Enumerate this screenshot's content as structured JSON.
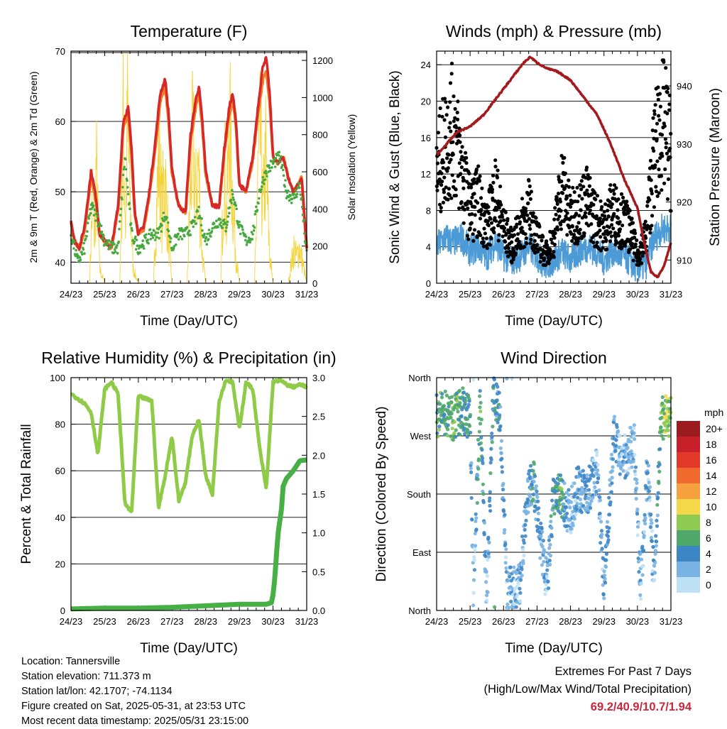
{
  "chart_data": [
    {
      "type": "line",
      "title": "Temperature (F)",
      "xlabel": "Time (Day/UTC)",
      "ylabel": "2m & 9m T (Red, Orange) & 2m Td (Green)",
      "ylabel_right": "Solar Insolation (Yellow)",
      "x_ticks": [
        "24/23",
        "25/23",
        "26/23",
        "27/23",
        "28/23",
        "29/23",
        "30/23",
        "31/23"
      ],
      "xlim": [
        0,
        7
      ],
      "ylim": [
        37,
        70
      ],
      "y_ticks": [
        40,
        50,
        60,
        70
      ],
      "ylim_right": [
        0,
        1250
      ],
      "y_ticks_right": [
        0,
        200,
        400,
        600,
        800,
        1000,
        1200
      ],
      "grid": "horizontal",
      "series": [
        {
          "name": "2m T",
          "axis": "left",
          "color": "#d62828",
          "x": [
            0,
            0.1,
            0.25,
            0.4,
            0.6,
            0.75,
            0.85,
            1,
            1.2,
            1.4,
            1.55,
            1.7,
            1.8,
            1.9,
            2,
            2.15,
            2.3,
            2.5,
            2.65,
            2.8,
            2.9,
            3,
            3.2,
            3.4,
            3.55,
            3.7,
            3.8,
            3.9,
            4,
            4.2,
            4.4,
            4.55,
            4.7,
            4.8,
            4.9,
            5,
            5.2,
            5.4,
            5.55,
            5.7,
            5.8,
            5.9,
            6,
            6.15,
            6.3,
            6.45,
            6.6,
            6.75,
            6.85,
            7
          ],
          "y": [
            46,
            43,
            42,
            45,
            53,
            49,
            44,
            43,
            42,
            48,
            60,
            62,
            56,
            47,
            44,
            45,
            49,
            57,
            64,
            66,
            61,
            53,
            48,
            47,
            58,
            63,
            65,
            60,
            53,
            48,
            48,
            56,
            62,
            64,
            60,
            51,
            50,
            55,
            62,
            68,
            69,
            64,
            55,
            54,
            55,
            52,
            50,
            51,
            52,
            42
          ]
        },
        {
          "name": "9m T",
          "axis": "left",
          "color": "#f07e26",
          "x": [
            0,
            0.1,
            0.25,
            0.4,
            0.6,
            0.75,
            0.85,
            1,
            1.2,
            1.4,
            1.55,
            1.7,
            1.8,
            1.9,
            2,
            2.15,
            2.3,
            2.5,
            2.65,
            2.8,
            2.9,
            3,
            3.2,
            3.4,
            3.55,
            3.7,
            3.8,
            3.9,
            4,
            4.2,
            4.4,
            4.55,
            4.7,
            4.8,
            4.9,
            5,
            5.2,
            5.4,
            5.55,
            5.7,
            5.8,
            5.9,
            6,
            6.15,
            6.3,
            6.45,
            6.6,
            6.75,
            6.85,
            7
          ],
          "y": [
            45.5,
            43,
            42,
            44.5,
            52,
            48.5,
            44,
            43,
            42,
            47.5,
            59,
            61,
            55,
            46.5,
            44,
            44.5,
            48.5,
            56,
            63,
            65,
            60,
            52.5,
            48,
            47,
            57,
            62,
            64,
            59.5,
            52.5,
            48,
            48,
            55.5,
            61,
            63,
            59.5,
            51,
            50,
            54.5,
            61,
            66,
            67,
            63,
            55,
            54,
            55,
            52,
            50,
            51,
            52,
            42
          ]
        },
        {
          "name": "2m Td",
          "axis": "left",
          "color": "#46a83e",
          "x": [
            0,
            0.2,
            0.4,
            0.6,
            0.8,
            1,
            1.2,
            1.4,
            1.6,
            1.8,
            2,
            2.2,
            2.4,
            2.6,
            2.8,
            3,
            3.2,
            3.4,
            3.6,
            3.8,
            4,
            4.2,
            4.4,
            4.6,
            4.8,
            5,
            5.2,
            5.4,
            5.6,
            5.8,
            6,
            6.2,
            6.4,
            6.6,
            6.8,
            7
          ],
          "y": [
            44,
            40,
            42,
            48,
            46,
            43,
            42,
            42,
            55,
            44,
            42,
            43,
            44,
            44,
            47,
            42,
            44,
            44,
            45,
            47,
            43,
            45,
            46,
            45,
            50,
            45,
            43,
            44,
            50,
            53,
            54,
            55,
            50,
            49,
            51,
            41
          ]
        },
        {
          "name": "Solar Insolation",
          "axis": "right",
          "color": "#f5d43b",
          "x": [
            0,
            0.55,
            0.65,
            0.7,
            0.75,
            0.85,
            1,
            1.45,
            1.55,
            1.62,
            1.68,
            1.75,
            1.85,
            2,
            2.45,
            2.55,
            2.62,
            2.7,
            2.78,
            2.9,
            3,
            3.45,
            3.55,
            3.62,
            3.7,
            3.78,
            3.9,
            4,
            4.45,
            4.55,
            4.62,
            4.7,
            4.78,
            4.9,
            5,
            5.45,
            5.55,
            5.62,
            5.7,
            5.78,
            5.9,
            6,
            6.45,
            6.55,
            6.62,
            6.7,
            6.78,
            6.9,
            7
          ],
          "y": [
            0,
            0,
            700,
            300,
            850,
            100,
            0,
            0,
            1150,
            400,
            1200,
            600,
            100,
            0,
            0,
            600,
            950,
            500,
            800,
            300,
            0,
            0,
            700,
            1000,
            600,
            850,
            200,
            0,
            0,
            900,
            400,
            1200,
            700,
            200,
            0,
            0,
            750,
            1000,
            500,
            900,
            200,
            0,
            0,
            150,
            250,
            180,
            260,
            120,
            0
          ]
        }
      ]
    },
    {
      "type": "scatter",
      "title": "Winds (mph) & Pressure (mb)",
      "xlabel": "Time (Day/UTC)",
      "ylabel": "Sonic Wind & Gust (Blue, Black)",
      "ylabel_right": "Station Pressure (Maroon)",
      "x_ticks": [
        "24/23",
        "25/23",
        "26/23",
        "27/23",
        "28/23",
        "29/23",
        "30/23",
        "31/23"
      ],
      "xlim": [
        0,
        7
      ],
      "ylim": [
        0,
        25.5
      ],
      "y_ticks": [
        0,
        4,
        8,
        12,
        16,
        20,
        24
      ],
      "ylim_right": [
        906,
        946
      ],
      "y_ticks_right": [
        910,
        920,
        930,
        940
      ],
      "grid": "horizontal",
      "series": [
        {
          "name": "Sonic Wind",
          "axis": "left",
          "style": "line",
          "color": "#4d9bd6",
          "x": [
            0,
            0.25,
            0.5,
            0.75,
            1,
            1.25,
            1.5,
            1.75,
            2,
            2.25,
            2.5,
            2.75,
            3,
            3.25,
            3.5,
            3.75,
            4,
            4.25,
            4.5,
            4.75,
            5,
            5.25,
            5.5,
            5.75,
            6,
            6.25,
            6.5,
            6.75,
            7
          ],
          "y": [
            4,
            5,
            4.5,
            5,
            3.5,
            4,
            3,
            4.5,
            3,
            2.5,
            3,
            4,
            3,
            2,
            2.5,
            3.5,
            2.5,
            3.5,
            4,
            3.5,
            2.5,
            3.5,
            3,
            2.5,
            1.5,
            2,
            5,
            6,
            6
          ]
        },
        {
          "name": "Gust",
          "axis": "left",
          "style": "points",
          "color": "#000000",
          "x": [
            0,
            0.25,
            0.5,
            0.75,
            1,
            1.25,
            1.5,
            1.75,
            2,
            2.25,
            2.5,
            2.75,
            3,
            3.25,
            3.5,
            3.75,
            4,
            4.25,
            4.5,
            4.75,
            5,
            5.25,
            5.5,
            5.75,
            6,
            6.25,
            6.5,
            6.75,
            7
          ],
          "y": [
            12,
            15,
            17,
            12,
            8,
            9,
            6,
            10,
            6,
            4,
            6,
            8,
            5,
            3,
            5,
            11,
            7,
            8,
            9,
            7,
            6,
            8,
            7,
            6,
            3,
            5,
            14,
            18,
            14
          ]
        },
        {
          "name": "Station Pressure",
          "axis": "right",
          "style": "line",
          "color": "#a5191d",
          "x": [
            0,
            0.3,
            0.6,
            1,
            1.4,
            1.8,
            2.2,
            2.6,
            2.8,
            3,
            3.3,
            3.6,
            4,
            4.4,
            4.8,
            5.2,
            5.6,
            6,
            6.2,
            6.4,
            6.6,
            6.8,
            7
          ],
          "y": [
            928,
            930,
            932,
            933,
            935,
            938,
            941,
            944,
            945,
            944,
            943,
            942.5,
            941,
            938,
            935,
            930,
            924,
            919,
            913,
            908,
            907,
            909,
            913
          ]
        }
      ]
    },
    {
      "type": "line",
      "title": "Relative Humidity (%) & Precipitation (in)",
      "xlabel": "Time (Day/UTC)",
      "ylabel": "Percent & Total Rainfall",
      "x_ticks": [
        "24/23",
        "25/23",
        "26/23",
        "27/23",
        "28/23",
        "29/23",
        "30/23",
        "31/23"
      ],
      "xlim": [
        0,
        7
      ],
      "ylim": [
        0,
        100
      ],
      "y_ticks": [
        0,
        20,
        40,
        60,
        80,
        100
      ],
      "ylim_right": [
        0,
        3.0
      ],
      "y_ticks_right": [
        "0.0",
        "0.5",
        "1.0",
        "1.5",
        "2.0",
        "2.5",
        "3.0"
      ],
      "grid": "horizontal",
      "series": [
        {
          "name": "Relative Humidity",
          "axis": "left",
          "color": "#8fcb47",
          "x": [
            0,
            0.2,
            0.4,
            0.6,
            0.8,
            1,
            1.2,
            1.4,
            1.6,
            1.8,
            2,
            2.2,
            2.4,
            2.6,
            2.8,
            3,
            3.2,
            3.4,
            3.6,
            3.8,
            4,
            4.2,
            4.4,
            4.6,
            4.8,
            5,
            5.2,
            5.4,
            5.6,
            5.8,
            6,
            6.2,
            6.4,
            6.6,
            6.8,
            7
          ],
          "y": [
            93,
            91,
            89,
            85,
            67,
            95,
            98,
            93,
            46,
            42,
            92,
            91,
            90,
            44,
            58,
            75,
            47,
            55,
            75,
            82,
            58,
            50,
            90,
            99,
            98,
            78,
            98,
            95,
            70,
            52,
            98,
            99,
            97,
            96,
            97,
            96
          ]
        },
        {
          "name": "Total Precipitation",
          "axis": "right",
          "color": "#46b046",
          "x": [
            0,
            1,
            2,
            3,
            4,
            5,
            5.8,
            5.95,
            6,
            6.05,
            6.1,
            6.15,
            6.25,
            6.3,
            6.4,
            6.5,
            6.6,
            6.8,
            7
          ],
          "y": [
            0.02,
            0.03,
            0.03,
            0.04,
            0.06,
            0.08,
            0.08,
            0.1,
            0.2,
            0.4,
            0.7,
            1.0,
            1.3,
            1.6,
            1.7,
            1.75,
            1.8,
            1.93,
            1.94
          ]
        }
      ]
    },
    {
      "type": "scatter",
      "title": "Wind Direction",
      "xlabel": "Time (Day/UTC)",
      "ylabel": "Direction (Colored By Speed)",
      "x_ticks": [
        "24/23",
        "25/23",
        "26/23",
        "27/23",
        "28/23",
        "29/23",
        "30/23",
        "31/23"
      ],
      "xlim": [
        0,
        7
      ],
      "ylim": [
        0,
        360
      ],
      "y_ticks": [
        "North",
        "East",
        "South",
        "West",
        "North"
      ],
      "grid": "horizontal",
      "colorbar": {
        "title": "mph",
        "labels": [
          "20+",
          "18",
          "16",
          "14",
          "12",
          "10",
          "8",
          "6",
          "4",
          "2",
          "0"
        ],
        "colors": [
          "#9b1b1e",
          "#c8202a",
          "#e2392b",
          "#ef6a2c",
          "#f7a13e",
          "#f4d84a",
          "#8fcb52",
          "#4fa86a",
          "#3d86c6",
          "#79b3e3",
          "#bfe1f5"
        ]
      },
      "series": [
        {
          "name": "Direction",
          "x": [
            0,
            0.25,
            0.5,
            0.75,
            1,
            1.1,
            1.3,
            1.5,
            1.7,
            1.9,
            2.1,
            2.5,
            2.7,
            2.9,
            3,
            3.3,
            3.5,
            3.7,
            4,
            4.2,
            4.5,
            4.8,
            5,
            5.3,
            5.5,
            5.9,
            6.1,
            6.3,
            6.5,
            6.7,
            6.9
          ],
          "y": [
            300,
            305,
            295,
            310,
            300,
            20,
            330,
            10,
            350,
            295,
            30,
            40,
            180,
            200,
            150,
            35,
            180,
            175,
            150,
            190,
            180,
            220,
            40,
            270,
            230,
            260,
            30,
            230,
            40,
            300,
            300
          ],
          "speed": [
            6,
            5,
            7,
            5,
            5,
            1,
            6,
            2,
            5,
            4,
            2,
            2,
            3,
            4,
            3,
            2,
            4,
            6,
            1,
            3,
            3,
            2,
            3,
            3,
            2,
            2,
            2,
            3,
            2,
            7,
            8
          ]
        }
      ]
    }
  ],
  "meta": {
    "location": "Location: Tannersville",
    "elevation": "Station elevation: 711.373 m",
    "latlon": "Station lat/lon: 42.1707; -74.1134",
    "created": "Figure created on Sat, 2025-05-31, at 23:53 UTC",
    "recent": "Most recent data timestamp: 2025/05/31 23:15:00"
  },
  "extremes": {
    "title": "Extremes For Past 7 Days",
    "subtitle": "(High/Low/Max Wind/Total Precipitation)",
    "values": "69.2/40.9/10.7/1.94"
  }
}
